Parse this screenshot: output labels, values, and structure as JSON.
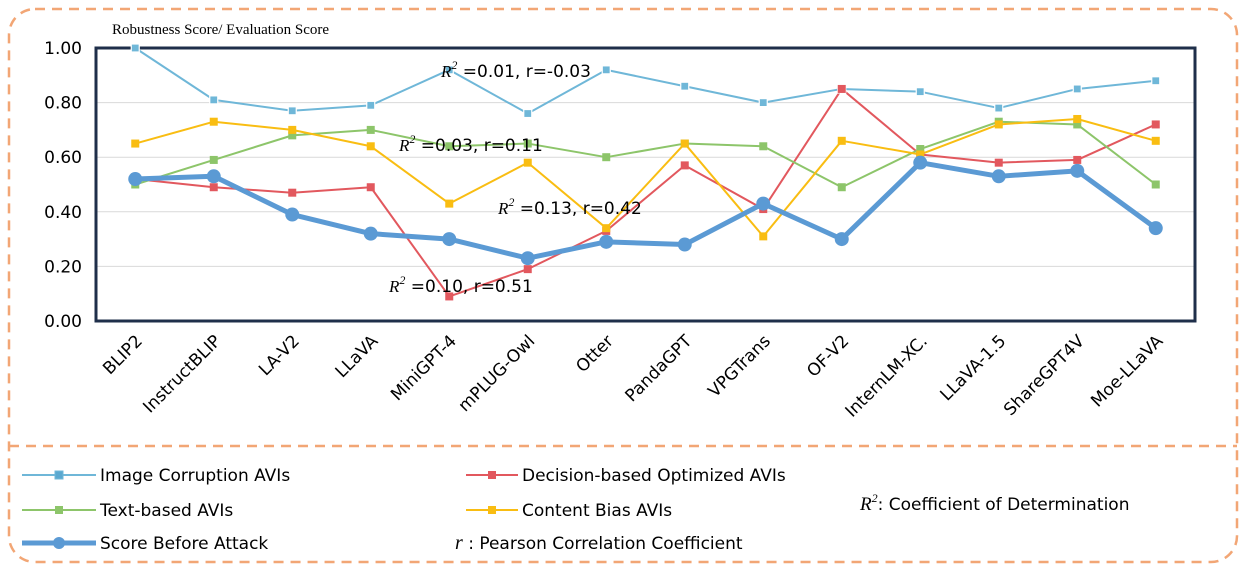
{
  "chart_data": {
    "type": "line",
    "ylabel": "Robustness  Score/ Evaluation  Score",
    "ylim": [
      0,
      1
    ],
    "yticks": [
      "0.00",
      "0.20",
      "0.40",
      "0.60",
      "0.80",
      "1.00"
    ],
    "grid": true,
    "categories": [
      "BLIP2",
      "InstructBLIP",
      "LA-V2",
      "LLaVA",
      "MiniGPT-4",
      "mPLUG-Owl",
      "Otter",
      "PandaGPT",
      "VPGTrans",
      "OF-V2",
      "InternLM-XC.",
      "LLaVA-1.5",
      "ShareGPT4V",
      "Moe-LLaVA"
    ],
    "series": [
      {
        "name": "Image Corruption AVIs",
        "color": "#6fb7d8",
        "marker": "square",
        "values": [
          1.0,
          0.81,
          0.77,
          0.79,
          0.92,
          0.76,
          0.92,
          0.86,
          0.8,
          0.85,
          0.84,
          0.78,
          0.85,
          0.88
        ]
      },
      {
        "name": "Decision-based Optimized AVIs",
        "color": "#e2585e",
        "marker": "square",
        "values": [
          0.52,
          0.49,
          0.47,
          0.49,
          0.09,
          0.19,
          0.33,
          0.57,
          0.41,
          0.85,
          0.61,
          0.58,
          0.59,
          0.72
        ]
      },
      {
        "name": "Text-based AVIs",
        "color": "#8dc56a",
        "marker": "square",
        "values": [
          0.5,
          0.59,
          0.68,
          0.7,
          0.64,
          0.65,
          0.6,
          0.65,
          0.64,
          0.49,
          0.63,
          0.73,
          0.72,
          0.5
        ]
      },
      {
        "name": "Content Bias AVIs",
        "color": "#f9bd12",
        "marker": "square",
        "values": [
          0.65,
          0.73,
          0.7,
          0.64,
          0.43,
          0.58,
          0.34,
          0.65,
          0.31,
          0.66,
          0.61,
          0.72,
          0.74,
          0.66
        ]
      },
      {
        "name": "Score Before Attack",
        "color": "#5b9ad4",
        "marker": "circle",
        "values": [
          0.52,
          0.53,
          0.39,
          0.32,
          0.3,
          0.23,
          0.29,
          0.28,
          0.43,
          0.3,
          0.58,
          0.53,
          0.55,
          0.34
        ]
      }
    ],
    "annotations": [
      {
        "r2": "=0.01,",
        "r": "r=-0.03"
      },
      {
        "r2": "=0.03,",
        "r": "r=0.11"
      },
      {
        "r2": "=0.13,",
        "r": "r=0.42"
      },
      {
        "r2": "=0.10,",
        "r": "r=0.51"
      }
    ],
    "notes": {
      "r2_label": ": Coefficient of Determination",
      "r_label": " : Pearson Correlation Coefficient"
    }
  }
}
